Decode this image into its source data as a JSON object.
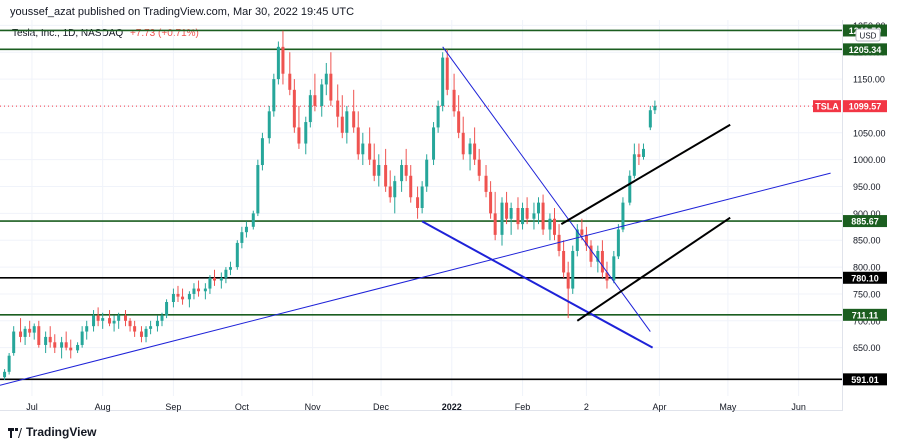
{
  "header": {
    "published": "youssef_azat published on TradingView.com, Mar 30, 2022 19:45 UTC"
  },
  "legend": {
    "title": "Tesla, Inc., 1D, NASDAQ",
    "change": "+7.73 (+0.71%)"
  },
  "currency_label": "USD",
  "footer": {
    "brand": "TradingView",
    "logo_icon": "tradingview-logo-icon"
  },
  "colors": {
    "up": "#26a69a",
    "down": "#ef5350",
    "level_green": "#1b5e20",
    "level_black": "#000000",
    "trend_blue": "#1e22d8",
    "channel_black": "#000000",
    "price_tag": "#f23645",
    "grid": "#f0f3fa"
  },
  "chart_data": {
    "type": "candlestick",
    "symbol": "TSLA",
    "timeframe": "1D",
    "exchange": "NASDAQ",
    "last_price": 1099.57,
    "ylim": [
      560,
      1260
    ],
    "y_ticks": [
      650,
      700,
      750,
      800,
      850,
      900,
      950,
      1000,
      1050,
      1100,
      1150,
      1200,
      1250
    ],
    "x_ticks": [
      "Jul",
      "Aug",
      "Sep",
      "Oct",
      "Nov",
      "Dec",
      "2022",
      "Feb",
      "2",
      "Apr",
      "May",
      "Jun"
    ],
    "x_tick_days": [
      0,
      31,
      62,
      92,
      123,
      153,
      184,
      215,
      243,
      275,
      305,
      336
    ],
    "xlim_days": [
      -14,
      355
    ],
    "horizontal_levels": [
      {
        "value": 1240.5,
        "label": "1240.50",
        "style": "green"
      },
      {
        "value": 1205.34,
        "label": "1205.34",
        "style": "green"
      },
      {
        "value": 885.67,
        "label": "885.67",
        "style": "green"
      },
      {
        "value": 780.1,
        "label": "780.10",
        "style": "black"
      },
      {
        "value": 711.11,
        "label": "711.11",
        "style": "green"
      },
      {
        "value": 591.01,
        "label": "591.01",
        "style": "black"
      }
    ],
    "dotted_price_line": 1099.57,
    "trend_lines": [
      {
        "from": [
          -14,
          580
        ],
        "to": [
          350,
          975
        ],
        "style": "blue_thin"
      },
      {
        "from": [
          180,
          1210
        ],
        "to": [
          271,
          680
        ],
        "style": "blue_thin"
      },
      {
        "from": [
          171,
          885
        ],
        "to": [
          272,
          650
        ],
        "style": "blue_thick"
      },
      {
        "from": [
          232,
          880
        ],
        "to": [
          306,
          1065
        ],
        "style": "black"
      },
      {
        "from": [
          239,
          700
        ],
        "to": [
          306,
          892
        ],
        "style": "black"
      }
    ],
    "candles": [
      [
        -12,
        595,
        610,
        590,
        605
      ],
      [
        -10,
        605,
        640,
        600,
        635
      ],
      [
        -8,
        640,
        690,
        635,
        680
      ],
      [
        -5,
        680,
        705,
        660,
        670
      ],
      [
        -3,
        670,
        690,
        655,
        685
      ],
      [
        -1,
        685,
        700,
        670,
        678
      ],
      [
        1,
        678,
        695,
        665,
        690
      ],
      [
        3,
        690,
        700,
        650,
        655
      ],
      [
        6,
        655,
        680,
        640,
        670
      ],
      [
        8,
        670,
        690,
        650,
        660
      ],
      [
        10,
        660,
        675,
        640,
        650
      ],
      [
        13,
        650,
        670,
        630,
        660
      ],
      [
        15,
        660,
        680,
        645,
        650
      ],
      [
        17,
        650,
        665,
        630,
        645
      ],
      [
        20,
        645,
        660,
        640,
        655
      ],
      [
        22,
        655,
        690,
        650,
        680
      ],
      [
        24,
        680,
        700,
        665,
        690
      ],
      [
        27,
        690,
        720,
        680,
        710
      ],
      [
        29,
        710,
        725,
        690,
        700
      ],
      [
        31,
        700,
        715,
        685,
        705
      ],
      [
        34,
        705,
        720,
        690,
        695
      ],
      [
        36,
        695,
        710,
        680,
        700
      ],
      [
        38,
        700,
        715,
        685,
        710
      ],
      [
        41,
        710,
        720,
        690,
        700
      ],
      [
        43,
        700,
        705,
        680,
        690
      ],
      [
        45,
        690,
        700,
        670,
        680
      ],
      [
        48,
        680,
        690,
        660,
        670
      ],
      [
        50,
        670,
        690,
        660,
        685
      ],
      [
        52,
        685,
        700,
        675,
        690
      ],
      [
        55,
        690,
        710,
        680,
        700
      ],
      [
        57,
        700,
        715,
        690,
        710
      ],
      [
        59,
        710,
        740,
        705,
        735
      ],
      [
        62,
        735,
        760,
        725,
        750
      ],
      [
        64,
        750,
        765,
        735,
        745
      ],
      [
        66,
        745,
        760,
        730,
        740
      ],
      [
        69,
        740,
        755,
        725,
        750
      ],
      [
        71,
        750,
        770,
        740,
        760
      ],
      [
        73,
        760,
        775,
        745,
        755
      ],
      [
        76,
        755,
        770,
        740,
        760
      ],
      [
        78,
        760,
        785,
        750,
        780
      ],
      [
        80,
        780,
        795,
        765,
        775
      ],
      [
        83,
        775,
        790,
        760,
        780
      ],
      [
        85,
        780,
        800,
        770,
        795
      ],
      [
        87,
        795,
        810,
        785,
        800
      ],
      [
        90,
        800,
        850,
        795,
        845
      ],
      [
        92,
        845,
        875,
        835,
        865
      ],
      [
        94,
        865,
        885,
        855,
        875
      ],
      [
        97,
        875,
        905,
        870,
        900
      ],
      [
        99,
        900,
        1000,
        895,
        990
      ],
      [
        101,
        990,
        1050,
        980,
        1040
      ],
      [
        104,
        1040,
        1100,
        1030,
        1090
      ],
      [
        106,
        1090,
        1160,
        1080,
        1150
      ],
      [
        108,
        1150,
        1220,
        1140,
        1210
      ],
      [
        110,
        1210,
        1240,
        1140,
        1160
      ],
      [
        113,
        1160,
        1200,
        1120,
        1130
      ],
      [
        115,
        1130,
        1150,
        1050,
        1060
      ],
      [
        117,
        1060,
        1100,
        1020,
        1030
      ],
      [
        120,
        1030,
        1080,
        1010,
        1070
      ],
      [
        122,
        1070,
        1130,
        1060,
        1120
      ],
      [
        124,
        1120,
        1160,
        1090,
        1100
      ],
      [
        127,
        1100,
        1150,
        1080,
        1140
      ],
      [
        129,
        1140,
        1180,
        1120,
        1160
      ],
      [
        131,
        1160,
        1200,
        1100,
        1110
      ],
      [
        134,
        1110,
        1140,
        1060,
        1080
      ],
      [
        136,
        1080,
        1120,
        1040,
        1050
      ],
      [
        138,
        1050,
        1100,
        1030,
        1090
      ],
      [
        141,
        1090,
        1130,
        1050,
        1060
      ],
      [
        143,
        1060,
        1090,
        1000,
        1010
      ],
      [
        145,
        1010,
        1050,
        990,
        1030
      ],
      [
        148,
        1030,
        1060,
        990,
        1000
      ],
      [
        150,
        1000,
        1030,
        960,
        970
      ],
      [
        152,
        970,
        1010,
        950,
        990
      ],
      [
        155,
        990,
        1020,
        940,
        950
      ],
      [
        157,
        950,
        980,
        920,
        930
      ],
      [
        159,
        930,
        970,
        900,
        960
      ],
      [
        162,
        960,
        1000,
        940,
        990
      ],
      [
        164,
        990,
        1020,
        960,
        970
      ],
      [
        166,
        970,
        990,
        920,
        930
      ],
      [
        169,
        930,
        950,
        890,
        910
      ],
      [
        171,
        910,
        960,
        900,
        950
      ],
      [
        173,
        950,
        1010,
        940,
        1000
      ],
      [
        176,
        1000,
        1070,
        990,
        1060
      ],
      [
        178,
        1060,
        1110,
        1050,
        1100
      ],
      [
        180,
        1100,
        1200,
        1090,
        1190
      ],
      [
        182,
        1190,
        1205,
        1120,
        1130
      ],
      [
        185,
        1130,
        1160,
        1080,
        1090
      ],
      [
        187,
        1090,
        1120,
        1040,
        1050
      ],
      [
        189,
        1050,
        1080,
        1000,
        1010
      ],
      [
        192,
        1010,
        1040,
        980,
        1030
      ],
      [
        194,
        1030,
        1060,
        990,
        1000
      ],
      [
        196,
        1000,
        1020,
        960,
        970
      ],
      [
        199,
        970,
        990,
        930,
        940
      ],
      [
        201,
        940,
        960,
        890,
        900
      ],
      [
        203,
        900,
        940,
        850,
        860
      ],
      [
        206,
        860,
        930,
        840,
        920
      ],
      [
        208,
        920,
        940,
        880,
        890
      ],
      [
        210,
        890,
        920,
        860,
        910
      ],
      [
        213,
        910,
        930,
        870,
        880
      ],
      [
        215,
        880,
        920,
        870,
        910
      ],
      [
        217,
        910,
        930,
        880,
        890
      ],
      [
        220,
        890,
        920,
        870,
        900
      ],
      [
        222,
        900,
        930,
        880,
        920
      ],
      [
        224,
        920,
        935,
        860,
        870
      ],
      [
        227,
        870,
        900,
        850,
        890
      ],
      [
        229,
        890,
        910,
        850,
        860
      ],
      [
        231,
        860,
        880,
        820,
        830
      ],
      [
        233,
        830,
        850,
        780,
        790
      ],
      [
        235,
        790,
        810,
        705,
        760
      ],
      [
        237,
        760,
        840,
        750,
        830
      ],
      [
        239,
        830,
        880,
        820,
        870
      ],
      [
        241,
        870,
        890,
        850,
        860
      ],
      [
        243,
        860,
        875,
        830,
        840
      ],
      [
        245,
        840,
        850,
        800,
        810
      ],
      [
        248,
        810,
        840,
        790,
        830
      ],
      [
        250,
        830,
        850,
        780,
        790
      ],
      [
        252,
        790,
        810,
        760,
        775
      ],
      [
        255,
        775,
        830,
        770,
        820
      ],
      [
        257,
        820,
        880,
        815,
        870
      ],
      [
        259,
        870,
        930,
        865,
        920
      ],
      [
        262,
        920,
        980,
        915,
        970
      ],
      [
        264,
        970,
        1030,
        965,
        1010
      ],
      [
        266,
        1010,
        1030,
        990,
        1005
      ],
      [
        268,
        1005,
        1030,
        1000,
        1020
      ],
      [
        271,
        1060,
        1100,
        1055,
        1092
      ],
      [
        273,
        1092,
        1110,
        1085,
        1100
      ]
    ]
  }
}
